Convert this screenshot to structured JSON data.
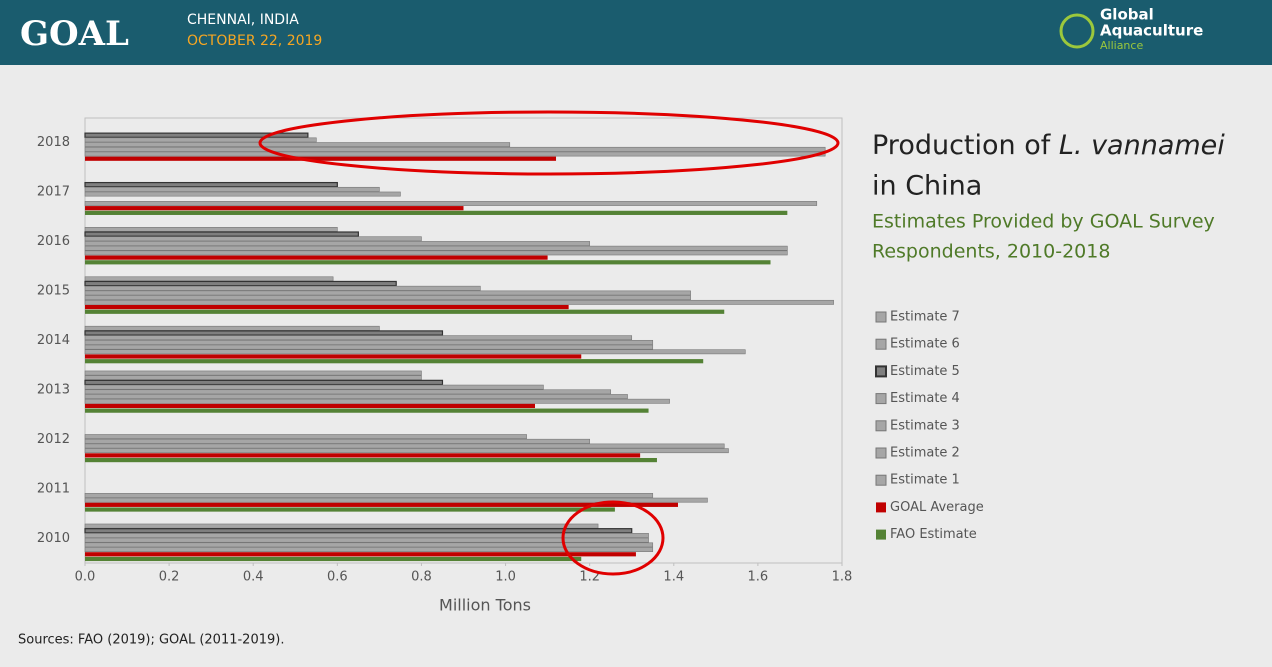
{
  "header": {
    "logo_text": "GOAL",
    "location": "CHENNAI, INDIA",
    "date": "OCTOBER 22, 2019",
    "org_lines": [
      "Global",
      "Aquaculture",
      "Alliance"
    ]
  },
  "chart_data": {
    "type": "hbar",
    "title_parts": [
      "Production of",
      "L. vannamei",
      "in China"
    ],
    "subtitle_lines": [
      "Estimates Provided by GOAL Survey",
      "Respondents, 2010-2018"
    ],
    "x_label": "Million Tons",
    "categories": [
      "2018",
      "2017",
      "2016",
      "2015",
      "2014",
      "2013",
      "2012",
      "2011",
      "2010"
    ],
    "series": [
      {
        "name": "Estimate 7",
        "color": "#a6a6a6",
        "values": [
          null,
          null,
          null,
          null,
          null,
          0.8,
          null,
          null,
          null
        ]
      },
      {
        "name": "Estimate 6",
        "color": "#a6a6a6",
        "values": [
          null,
          null,
          0.6,
          0.59,
          0.7,
          0.8,
          null,
          null,
          1.22
        ]
      },
      {
        "name": "Estimate 5",
        "color": "#7f7f7f",
        "values": [
          0.53,
          0.6,
          0.65,
          0.74,
          0.85,
          0.85,
          null,
          null,
          1.3
        ]
      },
      {
        "name": "Estimate 4",
        "color": "#a6a6a6",
        "values": [
          0.55,
          0.7,
          0.8,
          0.94,
          1.3,
          1.09,
          1.05,
          null,
          1.34
        ]
      },
      {
        "name": "Estimate 3",
        "color": "#a6a6a6",
        "values": [
          1.01,
          0.75,
          1.2,
          1.44,
          1.35,
          1.25,
          1.2,
          null,
          1.34
        ]
      },
      {
        "name": "Estimate 2",
        "color": "#a6a6a6",
        "values": [
          1.76,
          null,
          1.67,
          1.44,
          1.35,
          1.29,
          1.52,
          1.35,
          1.35
        ]
      },
      {
        "name": "Estimate 1",
        "color": "#a6a6a6",
        "values": [
          1.76,
          1.74,
          1.67,
          1.78,
          1.57,
          1.39,
          1.53,
          1.48,
          1.35
        ]
      },
      {
        "name": "GOAL Average",
        "color": "#c00000",
        "values": [
          1.12,
          0.9,
          1.1,
          1.15,
          1.18,
          1.07,
          1.32,
          1.41,
          1.31
        ]
      },
      {
        "name": "FAO Estimate",
        "color": "#548235",
        "values": [
          null,
          1.67,
          1.63,
          1.52,
          1.47,
          1.34,
          1.36,
          1.26,
          1.18
        ]
      }
    ],
    "xlim": [
      0,
      1.8
    ],
    "xticks": [
      {
        "value": 0,
        "label": "0.0"
      },
      0.2,
      0.4,
      0.6,
      0.8,
      {
        "value": 1,
        "label": "1.0"
      },
      1.2,
      1.4,
      1.6,
      1.8
    ],
    "source": "Sources:  FAO (2019); GOAL (2011-2019)."
  }
}
